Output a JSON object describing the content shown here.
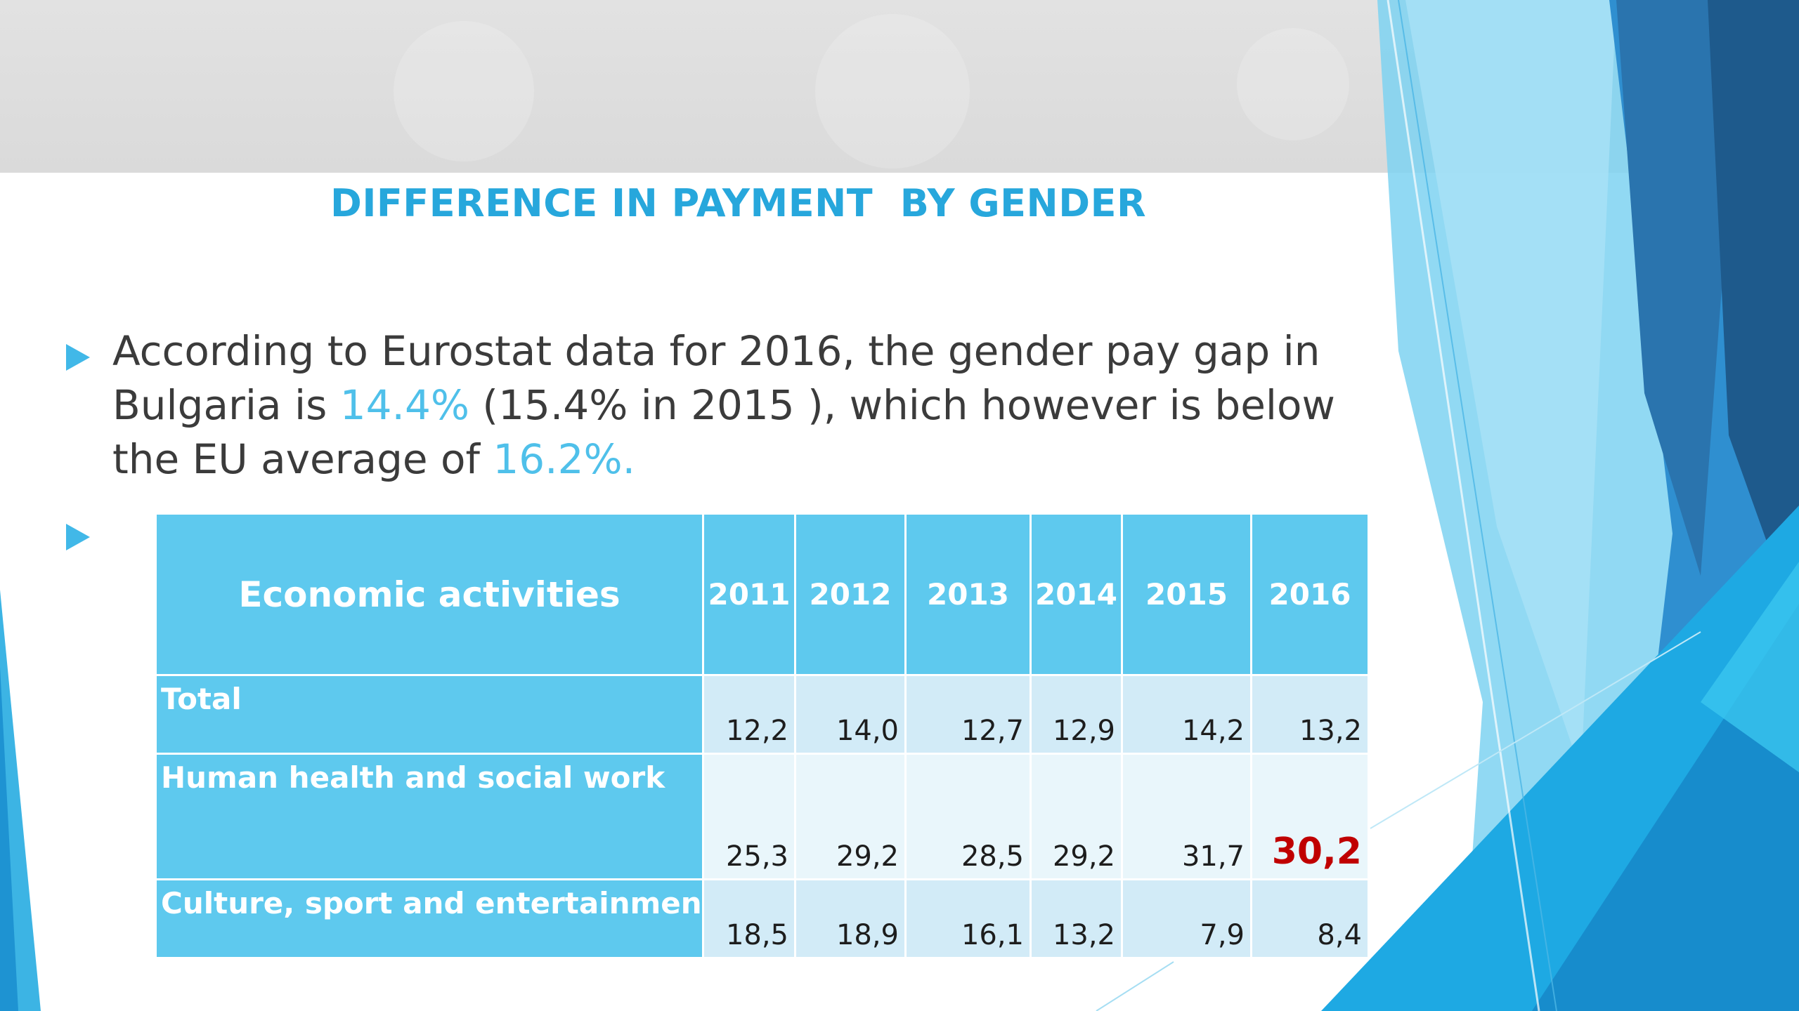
{
  "slide": {
    "title": "DIFFERENCE IN PAYMENT  BY GENDER",
    "bullet_icon": "triangle-right-icon",
    "accent_color": "#27a7dc",
    "paragraph": {
      "part1": "According to Eurostat data for 2016, the gender pay gap in Bulgaria is ",
      "value_2016": "14.4%",
      "part2": " (15.4% in 2015 ), which however is below the EU average of ",
      "eu_average": "16.2%",
      "part3": "."
    },
    "table": {
      "header": {
        "activity_label": "Economic activities",
        "years": [
          "2011",
          "2012",
          "2013",
          "2014",
          "2015",
          "2016"
        ]
      },
      "rows": [
        {
          "label": "Total",
          "values": [
            "12,2",
            "14,0",
            "12,7",
            "12,9",
            "14,2",
            "13,2"
          ]
        },
        {
          "label": "Human health and social work",
          "values": [
            "25,3",
            "29,2",
            "28,5",
            "29,2",
            "31,7",
            "30,2"
          ]
        },
        {
          "label": "Culture, sport and entertainment",
          "values": [
            "18,5",
            "18,9",
            "16,1",
            "13,2",
            "7,9",
            "8,4"
          ]
        }
      ],
      "highlight_color": "#c00000"
    }
  }
}
